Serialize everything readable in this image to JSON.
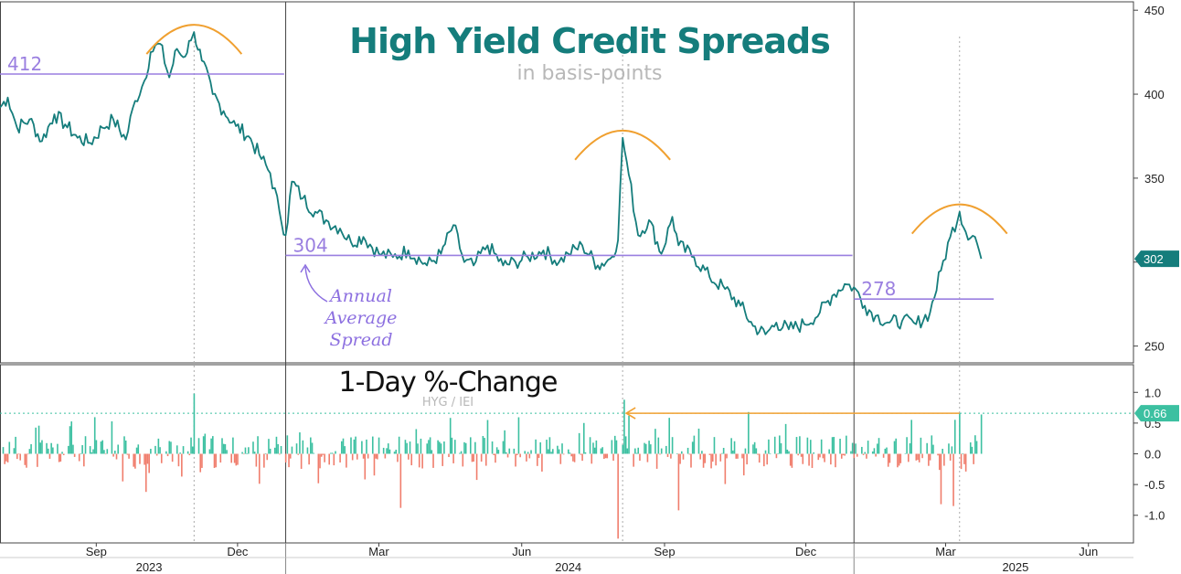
{
  "chart_data": [
    {
      "type": "line",
      "title": "High Yield Credit Spreads",
      "subtitle": "in basis-points",
      "ylim": [
        240,
        455
      ],
      "y_ticks": [
        250,
        300,
        350,
        400,
        450
      ],
      "line_color": "#157d7c",
      "x_range": [
        "2023-07-01",
        "2025-06-30"
      ],
      "year_dividers": [
        "2024-01-01",
        "2025-01-01"
      ],
      "last_value": 302,
      "last_value_label": "302",
      "series": [
        {
          "x": [
            "2023-07-01",
            "2023-07-06",
            "2023-07-12",
            "2023-07-20",
            "2023-07-28",
            "2023-08-05",
            "2023-08-12",
            "2023-08-20",
            "2023-08-28",
            "2023-09-05",
            "2023-09-12",
            "2023-09-20",
            "2023-09-26",
            "2023-10-02",
            "2023-10-06",
            "2023-10-12",
            "2023-10-18",
            "2023-10-23",
            "2023-10-27",
            "2023-11-01",
            "2023-11-03",
            "2023-11-08",
            "2023-11-15",
            "2023-11-22",
            "2023-11-30",
            "2023-12-08",
            "2023-12-15",
            "2023-12-22",
            "2023-12-28",
            "2024-01-01",
            "2024-01-05",
            "2024-01-12",
            "2024-01-20",
            "2024-01-27",
            "2024-02-05",
            "2024-02-12",
            "2024-02-20",
            "2024-03-01",
            "2024-03-10",
            "2024-03-20",
            "2024-04-01",
            "2024-04-10",
            "2024-04-18",
            "2024-04-25",
            "2024-05-01",
            "2024-05-10",
            "2024-05-20",
            "2024-05-28",
            "2024-06-05",
            "2024-06-15",
            "2024-06-25",
            "2024-07-01",
            "2024-07-10",
            "2024-07-20",
            "2024-07-28",
            "2024-08-02",
            "2024-08-05",
            "2024-08-09",
            "2024-08-15",
            "2024-08-22",
            "2024-08-30",
            "2024-09-06",
            "2024-09-10",
            "2024-09-20",
            "2024-09-30",
            "2024-10-10",
            "2024-10-20",
            "2024-10-28",
            "2024-11-05",
            "2024-11-12",
            "2024-11-20",
            "2024-11-30",
            "2024-12-10",
            "2024-12-18",
            "2024-12-26",
            "2025-01-01",
            "2025-01-08",
            "2025-01-15",
            "2025-01-24",
            "2025-02-01",
            "2025-02-10",
            "2025-02-19",
            "2025-02-26",
            "2025-03-04",
            "2025-03-10",
            "2025-03-14",
            "2025-03-20",
            "2025-03-24"
          ],
          "y": [
            392,
            398,
            380,
            385,
            372,
            388,
            382,
            374,
            371,
            380,
            385,
            373,
            396,
            408,
            425,
            430,
            410,
            427,
            422,
            432,
            437,
            420,
            400,
            390,
            381,
            375,
            364,
            353,
            330,
            316,
            348,
            338,
            330,
            325,
            320,
            312,
            315,
            305,
            303,
            307,
            298,
            305,
            322,
            300,
            298,
            310,
            298,
            300,
            303,
            307,
            300,
            305,
            310,
            298,
            302,
            313,
            374,
            352,
            316,
            325,
            305,
            327,
            310,
            303,
            291,
            284,
            274,
            262,
            257,
            264,
            260,
            263,
            270,
            280,
            287,
            285,
            274,
            268,
            264,
            265,
            263,
            270,
            295,
            315,
            330,
            318,
            315,
            302
          ]
        }
      ],
      "reference_lines": [
        {
          "label": "412",
          "value": 412,
          "x_start": "2023-07-01",
          "x_end": "2023-12-31"
        },
        {
          "label": "304",
          "value": 304,
          "x_start": "2024-01-01",
          "x_end": "2024-12-31"
        },
        {
          "label": "278",
          "value": 278,
          "x_start": "2025-01-01",
          "x_end": "2025-04-01"
        }
      ],
      "peaks": [
        "2023-11-03",
        "2024-08-05",
        "2025-03-10"
      ],
      "annotation": [
        "Annual",
        "Average",
        "Spread"
      ]
    },
    {
      "type": "bar",
      "title": "1-Day %-Change",
      "subtitle": "HYG / IEI",
      "ylim": [
        -1.45,
        1.45
      ],
      "y_ticks": [
        -1.0,
        -0.5,
        0.0,
        0.5,
        1.0
      ],
      "y_tick_labels": [
        "-1.0",
        "-0.5",
        "0.0",
        "0.5",
        "1.0"
      ],
      "positive_color": "#3cc0a1",
      "negative_color": "#f07d6c",
      "reference_value": 0.66,
      "reference_label": "0.66",
      "x_ticks": [
        {
          "date": "2023-09-01",
          "label": "Sep"
        },
        {
          "date": "2023-12-01",
          "label": "Dec"
        },
        {
          "date": "2024-03-01",
          "label": "Mar"
        },
        {
          "date": "2024-06-01",
          "label": "Jun"
        },
        {
          "date": "2024-09-01",
          "label": "Sep"
        },
        {
          "date": "2024-12-01",
          "label": "Dec"
        },
        {
          "date": "2025-03-01",
          "label": "Mar"
        },
        {
          "date": "2025-06-01",
          "label": "Jun"
        }
      ],
      "year_labels": [
        {
          "date": "2023-10-05",
          "label": "2023"
        },
        {
          "date": "2024-07-01",
          "label": "2024"
        },
        {
          "date": "2025-04-15",
          "label": "2025"
        }
      ],
      "series": [
        {
          "x": [
            "2023-11-03",
            "2024-08-02",
            "2024-08-06",
            "2024-08-09",
            "2025-03-10",
            "2025-03-24",
            "2023-08-15",
            "2023-10-03",
            "2024-03-15",
            "2024-05-10",
            "2024-09-10",
            "2024-10-25",
            "2025-02-26",
            "2025-03-06"
          ],
          "y": [
            0.98,
            -1.38,
            0.88,
            0.62,
            0.66,
            0.64,
            0.45,
            -0.62,
            -0.88,
            0.55,
            -0.92,
            0.68,
            -0.82,
            -0.85
          ]
        }
      ]
    }
  ]
}
